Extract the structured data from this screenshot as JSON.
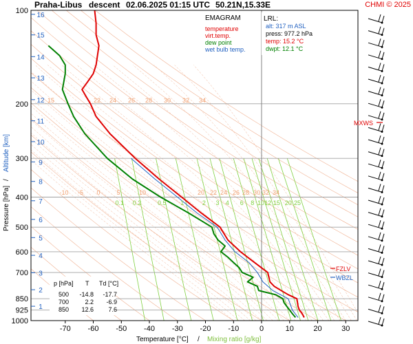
{
  "header": {
    "station": "Praha-Libus",
    "mode": "descent",
    "datetime": "02.06.2025 01:15 UTC",
    "coords": "50.21N,15.33E",
    "credit": "CHMI © 2025"
  },
  "legend": {
    "title": "EMAGRAM",
    "items": [
      {
        "label": "temperature",
        "color": "#e00000"
      },
      {
        "label": "virt.temp.",
        "color": "#e00000"
      },
      {
        "label": "dew point",
        "color": "#008000"
      },
      {
        "label": "wet bulb temp.",
        "color": "#2060c0"
      }
    ]
  },
  "lrl": {
    "title": "LRL:",
    "alt": "alt: 317 m ASL",
    "press": "press: 977.2 hPa",
    "temp": "temp: 15.2 °C",
    "dwpt": "dwpt: 12.1 °C"
  },
  "table": {
    "headers": [
      "p [hPa]",
      "T",
      "Td [°C]"
    ],
    "rows": [
      [
        "500",
        "-14.8",
        "-17.7"
      ],
      [
        "700",
        "2.2",
        "-6.9"
      ],
      [
        "850",
        "12.6",
        "7.6"
      ]
    ]
  },
  "markers": {
    "mxws": "MXWS",
    "fzlv": "FZLV",
    "wbzl": "WBZL"
  },
  "axes": {
    "ylabel_pressure": "Pressure [hPa]",
    "ylabel_sep": "/",
    "ylabel_altitude": "Altitude [km]",
    "xlabel_temp": "Temperature [°C]",
    "xlabel_sep": "/",
    "xlabel_mix": "Mixing ratio [g/kg]",
    "pressure_ticks": [
      "100",
      "200",
      "300",
      "400",
      "500",
      "600",
      "700",
      "850",
      "925",
      "1000"
    ],
    "temp_ticks": [
      "-70",
      "-60",
      "-50",
      "-40",
      "-30",
      "-20",
      "-10",
      "0",
      "10",
      "20",
      "30"
    ],
    "altitude_ticks": [
      "16",
      "15",
      "14",
      "13",
      "12",
      "11",
      "10",
      "9",
      "8",
      "7",
      "6",
      "5",
      "4",
      "3",
      "2",
      "1"
    ]
  },
  "colors": {
    "temperature": "#e00000",
    "dewpoint": "#008000",
    "wetbulb": "#2060c0",
    "grid": "#a0a0a0",
    "dry_adiabat": "#f0b090",
    "mixing_ratio": "#80d040",
    "altitude": "#2060c0"
  },
  "chart_data": {
    "type": "line",
    "title": "",
    "xlabel": "Temperature [°C] / Mixing ratio [g/kg]",
    "ylabel": "Pressure [hPa] / Altitude [km]",
    "xlim": [
      -80,
      40
    ],
    "ylim": [
      1000,
      100
    ],
    "y_scale": "log",
    "grid": true,
    "series": [
      {
        "name": "temperature",
        "pressure": [
          977,
          950,
          925,
          900,
          875,
          850,
          825,
          800,
          775,
          750,
          700,
          650,
          600,
          550,
          500,
          450,
          400,
          350,
          300,
          250,
          220,
          200,
          190,
          180,
          170,
          160,
          150,
          140,
          130,
          120,
          110,
          100
        ],
        "values": [
          15.2,
          14.5,
          13.5,
          13.0,
          12.8,
          12.6,
          9.5,
          7.0,
          4.5,
          3.0,
          2.2,
          -2.5,
          -7.5,
          -12.0,
          -14.8,
          -21.5,
          -28.5,
          -36.5,
          -45.0,
          -54.0,
          -59.0,
          -61.0,
          -62.5,
          -64.0,
          -62.0,
          -60.0,
          -59.0,
          -58.5,
          -58.0,
          -59.0,
          -59.0,
          -59.5
        ]
      },
      {
        "name": "dew point",
        "pressure": [
          977,
          950,
          925,
          900,
          875,
          850,
          825,
          800,
          775,
          750,
          725,
          700,
          675,
          650,
          625,
          600,
          575,
          550,
          525,
          500,
          450,
          400,
          350,
          300,
          250,
          220,
          200,
          180,
          160,
          150,
          140,
          130
        ],
        "values": [
          12.1,
          11.0,
          10.0,
          9.0,
          8.0,
          7.6,
          5.0,
          -1.0,
          -1.5,
          -5.0,
          -3.0,
          -6.9,
          -8.0,
          -10.0,
          -12.0,
          -14.5,
          -13.0,
          -15.5,
          -17.0,
          -17.7,
          -26.0,
          -36.0,
          -46.0,
          -55.0,
          -63.0,
          -67.0,
          -69.0,
          -71.0,
          -70.0,
          -70.0,
          -72.0,
          -76.0
        ]
      },
      {
        "name": "wet bulb temp.",
        "pressure": [
          977,
          950,
          925,
          900,
          875,
          850,
          800,
          750,
          700,
          650,
          600,
          550,
          500,
          450,
          400,
          350,
          300
        ],
        "values": [
          13.0,
          12.0,
          11.0,
          10.5,
          10.0,
          9.5,
          4.0,
          0.5,
          -1.5,
          -4.5,
          -9.5,
          -13.0,
          -15.8,
          -23.0,
          -30.0,
          -38.0,
          -46.5
        ]
      }
    ],
    "mixing_ratio_lines": [
      "0.1",
      "0.2",
      "0.5",
      "1",
      "2",
      "3",
      "4",
      "6",
      "8",
      "10",
      "12",
      "15",
      "20",
      "25"
    ],
    "dry_adiabats": [
      "-10",
      "-5",
      "0",
      "5",
      "10",
      "15",
      "20",
      "22",
      "24",
      "26",
      "28",
      "30",
      "32",
      "34"
    ],
    "wind_levels": 26
  }
}
